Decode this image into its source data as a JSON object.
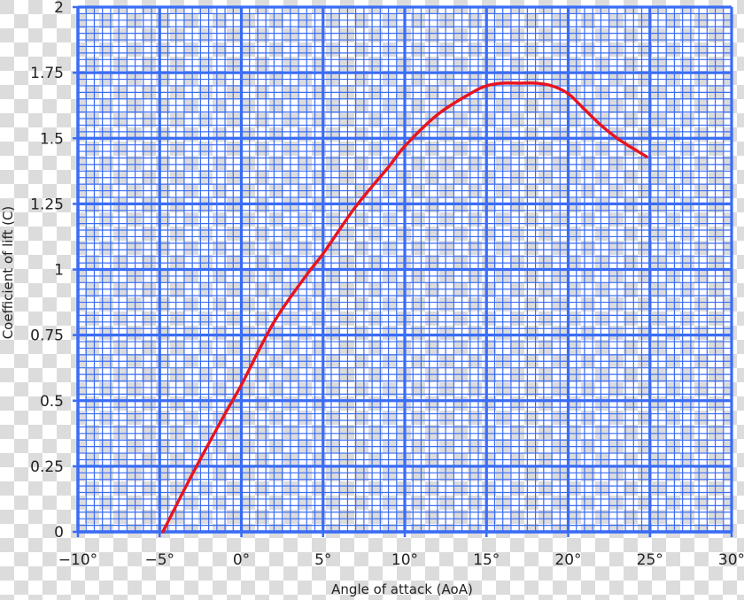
{
  "chart_data": {
    "type": "line",
    "title": "",
    "xlabel": "Angle of attack (AoA)",
    "ylabel": "Coefficient of lift (C)",
    "xlim": [
      -10,
      30
    ],
    "ylim": [
      0,
      2
    ],
    "x_ticks": [
      -10,
      -5,
      0,
      5,
      10,
      15,
      20,
      25,
      30
    ],
    "x_tick_labels": [
      "−10°",
      "−5°",
      "0°",
      "5°",
      "10°",
      "15°",
      "20°",
      "25°",
      "30°"
    ],
    "y_ticks": [
      0,
      0.25,
      0.5,
      0.75,
      1,
      1.25,
      1.5,
      1.75,
      2
    ],
    "y_tick_labels": [
      "0",
      "0.25",
      "0.5",
      "0.75",
      "1",
      "1.25",
      "1.5",
      "1.75",
      "2"
    ],
    "grid": true,
    "background": "transparent checkerboard",
    "series": [
      {
        "color": "#e8141e",
        "x": [
          -4.8,
          -3,
          -1,
          0,
          2,
          4,
          5,
          7,
          9,
          10,
          12,
          14,
          15,
          16,
          17,
          18,
          19,
          20,
          21,
          22,
          23,
          24,
          24.8
        ],
        "y": [
          0,
          0.22,
          0.45,
          0.56,
          0.8,
          0.98,
          1.06,
          1.24,
          1.39,
          1.47,
          1.59,
          1.67,
          1.7,
          1.71,
          1.71,
          1.71,
          1.7,
          1.67,
          1.61,
          1.55,
          1.5,
          1.46,
          1.43
        ]
      }
    ],
    "colors": {
      "grid": "#3a6cf5",
      "line": "#e8141e",
      "text": "#222222"
    }
  }
}
